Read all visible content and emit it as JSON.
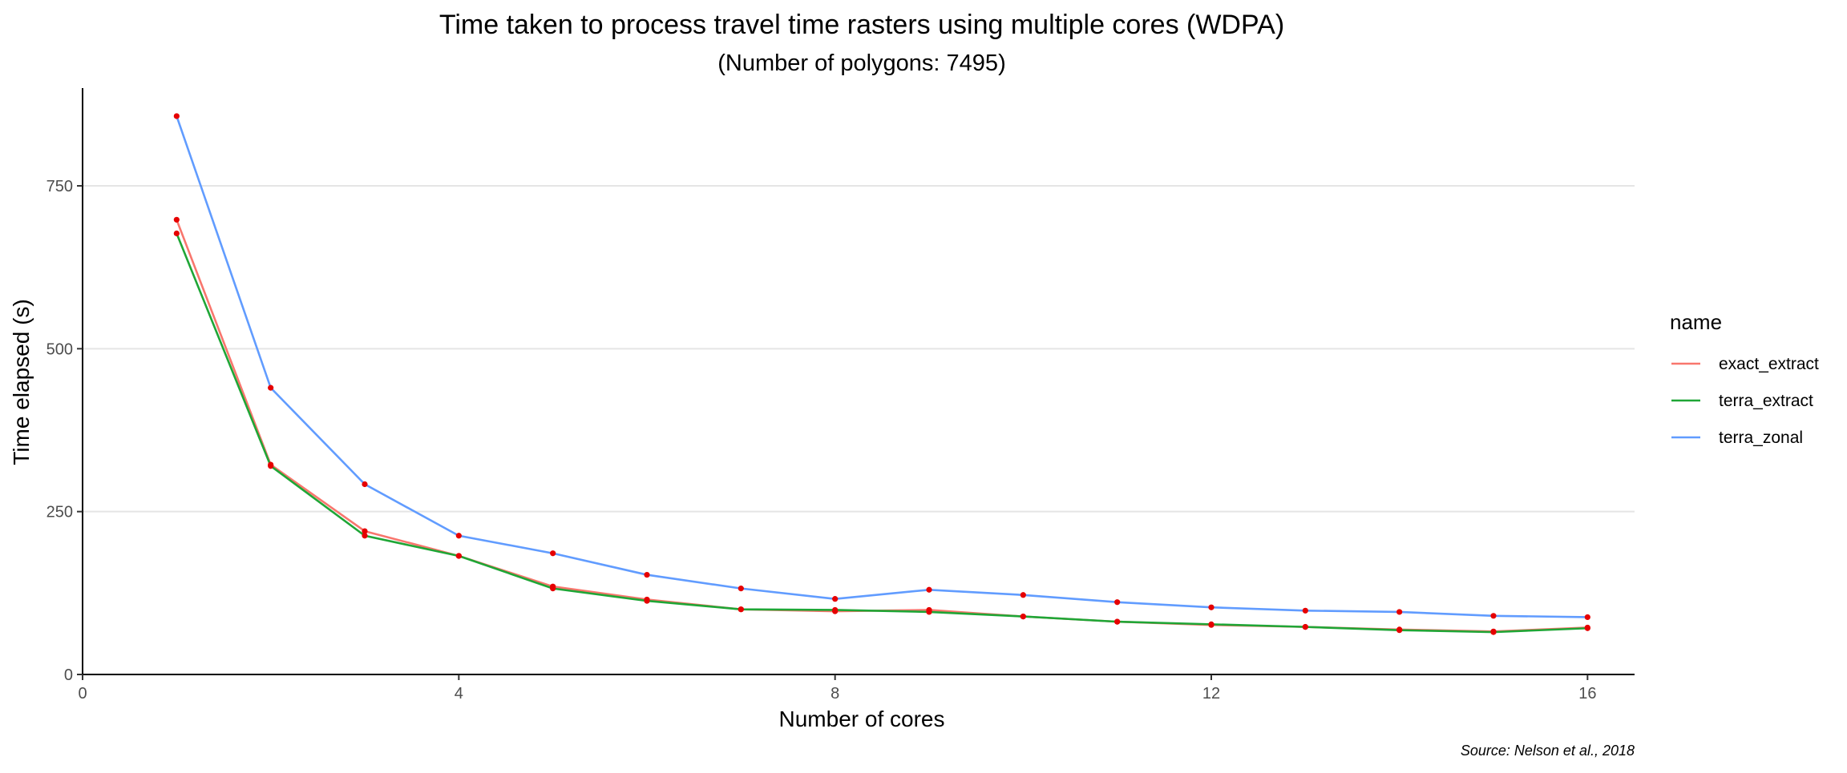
{
  "chart_data": {
    "type": "line",
    "title": "Time taken to process travel time rasters using multiple cores (WDPA)",
    "subtitle": "(Number of polygons: 7495)",
    "xlabel": "Number of cores",
    "ylabel": "Time elapsed (s)",
    "caption": "Source: Nelson et al., 2018",
    "xlim": [
      0,
      16.5
    ],
    "ylim": [
      0,
      900
    ],
    "x_ticks": [
      0,
      4,
      8,
      12,
      16
    ],
    "y_ticks": [
      0,
      250,
      500,
      750
    ],
    "grid": "horizontal major lines only",
    "legend": {
      "title": "name",
      "position": "right"
    },
    "point_color": "#e60000",
    "x": [
      1,
      2,
      3,
      4,
      5,
      6,
      7,
      8,
      9,
      10,
      11,
      12,
      13,
      14,
      15,
      16
    ],
    "series": [
      {
        "name": "exact_extract",
        "color": "#f8766d",
        "values": [
          698,
          322,
          220,
          182,
          135,
          115,
          100,
          97,
          99,
          89,
          81,
          76,
          73,
          69,
          66,
          72
        ]
      },
      {
        "name": "terra_extract",
        "color": "#1fa636",
        "values": [
          677,
          320,
          213,
          182,
          132,
          113,
          100,
          99,
          96,
          89,
          81,
          77,
          73,
          68,
          65,
          71
        ]
      },
      {
        "name": "terra_zonal",
        "color": "#619cff",
        "values": [
          857,
          440,
          292,
          213,
          186,
          153,
          132,
          116,
          130,
          122,
          111,
          103,
          98,
          96,
          90,
          88
        ]
      }
    ]
  }
}
